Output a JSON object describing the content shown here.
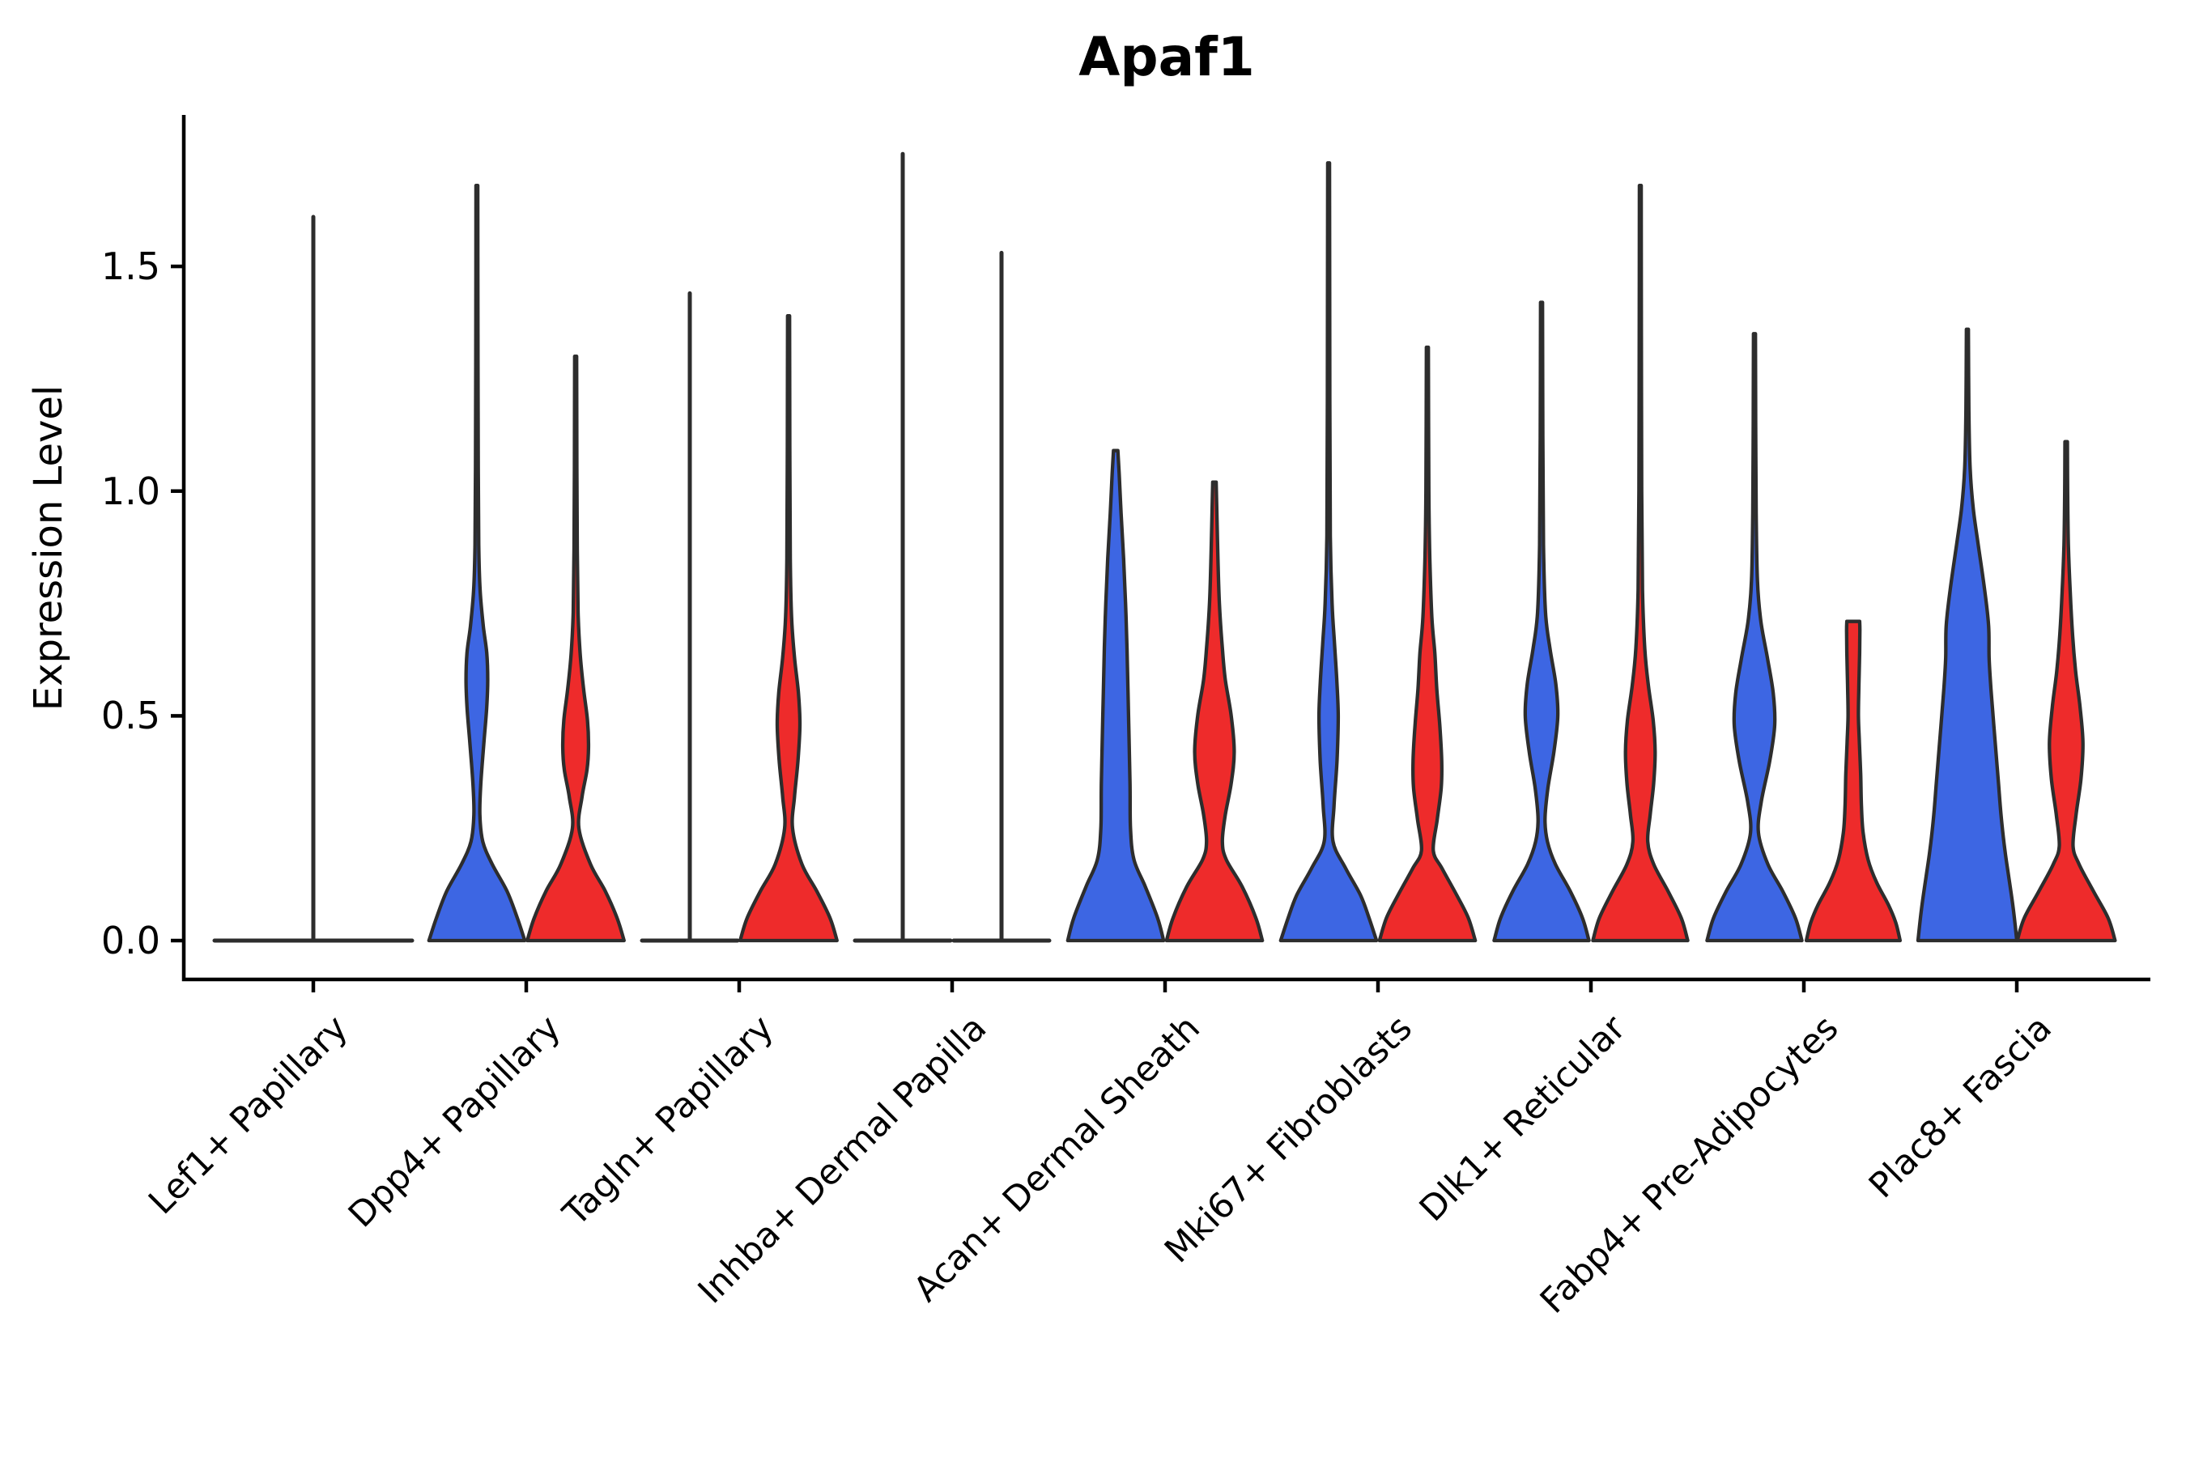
{
  "title": "Apaf1",
  "y_axis": {
    "label": "Expression Level",
    "tick_labels": [
      "0.0",
      "0.5",
      "1.0",
      "1.5"
    ]
  },
  "x_axis": {
    "tick_labels": [
      "Lef1+ Papillary",
      "Dpp4+ Papillary",
      "Tagln+ Papillary",
      "Inhba+ Dermal Papilla",
      "Acan+ Dermal Sheath",
      "Mki67+ Fibroblasts",
      "Dlk1+ Reticular",
      "Fabp4+ Pre-Adipocytes",
      "Plac8+ Fascia"
    ],
    "rotation_deg": 45
  },
  "colors": {
    "series_blue": "#3D66E3",
    "series_red": "#EE2B2B",
    "violin_outline": "#2D2D2D",
    "axis": "#000000",
    "background": "#FFFFFF"
  },
  "chart_data": {
    "type": "violin",
    "title": "Apaf1",
    "xlabel": "",
    "ylabel": "Expression Level",
    "yticks": [
      0.0,
      0.5,
      1.0,
      1.5
    ],
    "ylim": [
      -0.09,
      1.84
    ],
    "grid": false,
    "legend": null,
    "series": [
      "blue",
      "red"
    ],
    "categories": [
      "Lef1+ Papillary",
      "Dpp4+ Papillary",
      "Tagln+ Papillary",
      "Inhba+ Dermal Papilla",
      "Acan+ Dermal Sheath",
      "Mki67+ Fibroblasts",
      "Dlk1+ Reticular",
      "Fabp4+ Pre-Adipocytes",
      "Plac8+ Fascia"
    ],
    "profile_note": "profile = [expression_value, half_width_fraction] pairs describing each KDE outline; collapsed=true means the violin is a flat line at 0 with a single thin spike up to max",
    "groups": [
      {
        "category": "Lef1+ Papillary",
        "violins": [
          {
            "series": null,
            "dodge": "center",
            "collapsed": true,
            "max": 1.61,
            "profile": null
          }
        ]
      },
      {
        "category": "Dpp4+ Papillary",
        "violins": [
          {
            "series": "blue",
            "dodge": "left",
            "collapsed": false,
            "max": 1.68,
            "profile": [
              [
                0,
                0.97
              ],
              [
                0.05,
                0.82
              ],
              [
                0.11,
                0.61
              ],
              [
                0.17,
                0.31
              ],
              [
                0.22,
                0.12
              ],
              [
                0.28,
                0.06
              ],
              [
                0.35,
                0.08
              ],
              [
                0.45,
                0.15
              ],
              [
                0.52,
                0.2
              ],
              [
                0.58,
                0.22
              ],
              [
                0.64,
                0.2
              ],
              [
                0.7,
                0.13
              ],
              [
                0.78,
                0.065
              ],
              [
                0.88,
                0.038
              ],
              [
                1.05,
                0.028
              ],
              [
                1.35,
                0.022
              ],
              [
                1.68,
                0.018
              ]
            ]
          },
          {
            "series": "red",
            "dodge": "right",
            "collapsed": false,
            "max": 1.3,
            "profile": [
              [
                0,
                0.98
              ],
              [
                0.05,
                0.84
              ],
              [
                0.11,
                0.6
              ],
              [
                0.17,
                0.3
              ],
              [
                0.25,
                0.065
              ],
              [
                0.32,
                0.13
              ],
              [
                0.38,
                0.23
              ],
              [
                0.43,
                0.26
              ],
              [
                0.49,
                0.24
              ],
              [
                0.56,
                0.16
              ],
              [
                0.64,
                0.09
              ],
              [
                0.73,
                0.05
              ],
              [
                0.87,
                0.032
              ],
              [
                1.05,
                0.025
              ],
              [
                1.3,
                0.02
              ]
            ]
          }
        ]
      },
      {
        "category": "Tagln+ Papillary",
        "violins": [
          {
            "series": "blue",
            "dodge": "left",
            "collapsed": true,
            "max": 1.44,
            "profile": null
          },
          {
            "series": "red",
            "dodge": "right",
            "collapsed": false,
            "max": 1.39,
            "profile": [
              [
                0,
                0.98
              ],
              [
                0.05,
                0.84
              ],
              [
                0.11,
                0.57
              ],
              [
                0.17,
                0.27
              ],
              [
                0.25,
                0.08
              ],
              [
                0.32,
                0.12
              ],
              [
                0.4,
                0.19
              ],
              [
                0.48,
                0.23
              ],
              [
                0.55,
                0.2
              ],
              [
                0.63,
                0.12
              ],
              [
                0.72,
                0.06
              ],
              [
                0.85,
                0.035
              ],
              [
                1.1,
                0.025
              ],
              [
                1.39,
                0.02
              ]
            ]
          }
        ]
      },
      {
        "category": "Inhba+ Dermal Papilla",
        "violins": [
          {
            "series": "blue",
            "dodge": "left",
            "collapsed": true,
            "max": 1.75,
            "profile": null
          },
          {
            "series": "red",
            "dodge": "right",
            "collapsed": true,
            "max": 1.53,
            "profile": null
          }
        ]
      },
      {
        "category": "Acan+ Dermal Sheath",
        "violins": [
          {
            "series": "blue",
            "dodge": "left",
            "collapsed": false,
            "max": 1.09,
            "profile": [
              [
                0,
                0.97
              ],
              [
                0.05,
                0.85
              ],
              [
                0.12,
                0.6
              ],
              [
                0.18,
                0.37
              ],
              [
                0.25,
                0.3
              ],
              [
                0.35,
                0.29
              ],
              [
                0.5,
                0.26
              ],
              [
                0.65,
                0.23
              ],
              [
                0.75,
                0.2
              ],
              [
                0.85,
                0.16
              ],
              [
                0.95,
                0.11
              ],
              [
                1.04,
                0.07
              ],
              [
                1.09,
                0.045
              ]
            ]
          },
          {
            "series": "red",
            "dodge": "right",
            "collapsed": false,
            "max": 1.02,
            "profile": [
              [
                0,
                0.97
              ],
              [
                0.05,
                0.84
              ],
              [
                0.12,
                0.56
              ],
              [
                0.18,
                0.24
              ],
              [
                0.22,
                0.16
              ],
              [
                0.28,
                0.22
              ],
              [
                0.35,
                0.34
              ],
              [
                0.42,
                0.4
              ],
              [
                0.5,
                0.34
              ],
              [
                0.58,
                0.22
              ],
              [
                0.65,
                0.16
              ],
              [
                0.75,
                0.1
              ],
              [
                0.85,
                0.07
              ],
              [
                0.95,
                0.05
              ],
              [
                1.02,
                0.035
              ]
            ]
          }
        ]
      },
      {
        "category": "Mki67+ Fibroblasts",
        "violins": [
          {
            "series": "blue",
            "dodge": "left",
            "collapsed": false,
            "max": 1.73,
            "profile": [
              [
                0,
                0.97
              ],
              [
                0.05,
                0.82
              ],
              [
                0.1,
                0.65
              ],
              [
                0.16,
                0.35
              ],
              [
                0.22,
                0.09
              ],
              [
                0.3,
                0.11
              ],
              [
                0.4,
                0.17
              ],
              [
                0.5,
                0.195
              ],
              [
                0.58,
                0.165
              ],
              [
                0.66,
                0.12
              ],
              [
                0.75,
                0.07
              ],
              [
                0.9,
                0.035
              ],
              [
                1.2,
                0.025
              ],
              [
                1.73,
                0.018
              ]
            ]
          },
          {
            "series": "red",
            "dodge": "right",
            "collapsed": false,
            "max": 1.32,
            "profile": [
              [
                0,
                0.97
              ],
              [
                0.05,
                0.83
              ],
              [
                0.1,
                0.6
              ],
              [
                0.16,
                0.3
              ],
              [
                0.2,
                0.12
              ],
              [
                0.27,
                0.2
              ],
              [
                0.34,
                0.28
              ],
              [
                0.4,
                0.29
              ],
              [
                0.48,
                0.25
              ],
              [
                0.56,
                0.19
              ],
              [
                0.64,
                0.15
              ],
              [
                0.72,
                0.09
              ],
              [
                0.85,
                0.05
              ],
              [
                1.0,
                0.03
              ],
              [
                1.32,
                0.02
              ]
            ]
          }
        ]
      },
      {
        "category": "Dlk1+ Reticular",
        "violins": [
          {
            "series": "blue",
            "dodge": "left",
            "collapsed": false,
            "max": 1.42,
            "profile": [
              [
                0,
                0.96
              ],
              [
                0.05,
                0.83
              ],
              [
                0.11,
                0.58
              ],
              [
                0.17,
                0.28
              ],
              [
                0.22,
                0.12
              ],
              [
                0.27,
                0.07
              ],
              [
                0.34,
                0.13
              ],
              [
                0.42,
                0.25
              ],
              [
                0.5,
                0.33
              ],
              [
                0.57,
                0.29
              ],
              [
                0.65,
                0.17
              ],
              [
                0.73,
                0.08
              ],
              [
                0.88,
                0.04
              ],
              [
                1.12,
                0.026
              ],
              [
                1.42,
                0.02
              ]
            ]
          },
          {
            "series": "red",
            "dodge": "right",
            "collapsed": false,
            "max": 1.68,
            "profile": [
              [
                0,
                0.96
              ],
              [
                0.05,
                0.83
              ],
              [
                0.11,
                0.56
              ],
              [
                0.17,
                0.27
              ],
              [
                0.22,
                0.15
              ],
              [
                0.28,
                0.2
              ],
              [
                0.35,
                0.27
              ],
              [
                0.42,
                0.3
              ],
              [
                0.49,
                0.26
              ],
              [
                0.57,
                0.16
              ],
              [
                0.65,
                0.09
              ],
              [
                0.78,
                0.045
              ],
              [
                1.0,
                0.028
              ],
              [
                1.35,
                0.022
              ],
              [
                1.68,
                0.018
              ]
            ]
          }
        ]
      },
      {
        "category": "Fabp4+ Pre-Adipocytes",
        "violins": [
          {
            "series": "blue",
            "dodge": "left",
            "collapsed": false,
            "max": 1.35,
            "profile": [
              [
                0,
                0.96
              ],
              [
                0.05,
                0.83
              ],
              [
                0.11,
                0.57
              ],
              [
                0.17,
                0.27
              ],
              [
                0.24,
                0.08
              ],
              [
                0.31,
                0.14
              ],
              [
                0.4,
                0.31
              ],
              [
                0.48,
                0.41
              ],
              [
                0.55,
                0.38
              ],
              [
                0.63,
                0.26
              ],
              [
                0.71,
                0.13
              ],
              [
                0.8,
                0.06
              ],
              [
                0.95,
                0.035
              ],
              [
                1.15,
                0.025
              ],
              [
                1.35,
                0.02
              ]
            ]
          },
          {
            "series": "red",
            "dodge": "right",
            "collapsed": false,
            "max": 0.71,
            "profile": [
              [
                0,
                0.95
              ],
              [
                0.04,
                0.86
              ],
              [
                0.08,
                0.71
              ],
              [
                0.13,
                0.47
              ],
              [
                0.18,
                0.3
              ],
              [
                0.24,
                0.2
              ],
              [
                0.3,
                0.165
              ],
              [
                0.37,
                0.15
              ],
              [
                0.44,
                0.125
              ],
              [
                0.5,
                0.105
              ],
              [
                0.57,
                0.115
              ],
              [
                0.64,
                0.13
              ],
              [
                0.69,
                0.135
              ],
              [
                0.71,
                0.13
              ]
            ]
          }
        ]
      },
      {
        "category": "Plac8+ Fascia",
        "violins": [
          {
            "series": "blue",
            "dodge": "left",
            "collapsed": false,
            "max": 1.36,
            "profile": [
              [
                0,
                1.0
              ],
              [
                0.07,
                0.93
              ],
              [
                0.14,
                0.84
              ],
              [
                0.2,
                0.76
              ],
              [
                0.28,
                0.68
              ],
              [
                0.35,
                0.63
              ],
              [
                0.43,
                0.57
              ],
              [
                0.5,
                0.52
              ],
              [
                0.57,
                0.47
              ],
              [
                0.63,
                0.44
              ],
              [
                0.7,
                0.43
              ],
              [
                0.78,
                0.35
              ],
              [
                0.88,
                0.22
              ],
              [
                0.96,
                0.12
              ],
              [
                1.05,
                0.055
              ],
              [
                1.18,
                0.03
              ],
              [
                1.36,
                0.02
              ]
            ]
          },
          {
            "series": "red",
            "dodge": "right",
            "collapsed": false,
            "max": 1.11,
            "profile": [
              [
                0,
                0.99
              ],
              [
                0.05,
                0.85
              ],
              [
                0.11,
                0.55
              ],
              [
                0.17,
                0.26
              ],
              [
                0.21,
                0.14
              ],
              [
                0.28,
                0.2
              ],
              [
                0.36,
                0.3
              ],
              [
                0.44,
                0.34
              ],
              [
                0.52,
                0.28
              ],
              [
                0.6,
                0.19
              ],
              [
                0.68,
                0.13
              ],
              [
                0.78,
                0.08
              ],
              [
                0.88,
                0.045
              ],
              [
                1.0,
                0.03
              ],
              [
                1.11,
                0.025
              ]
            ]
          }
        ]
      }
    ]
  }
}
